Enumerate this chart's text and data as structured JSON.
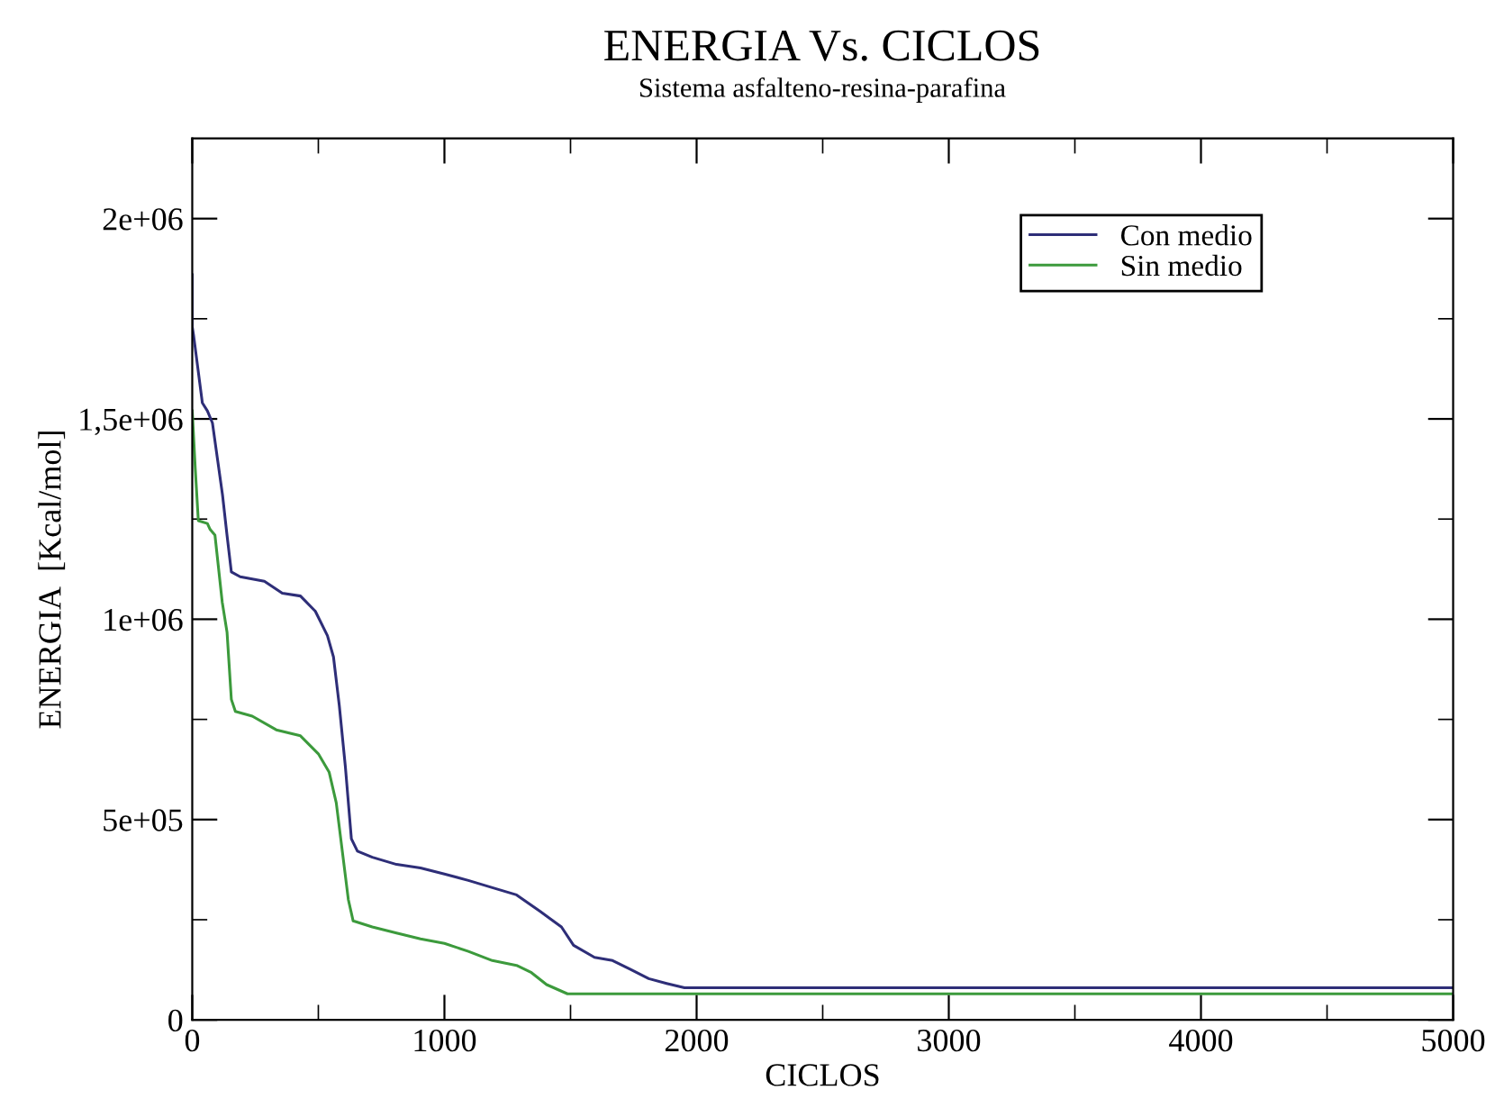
{
  "chart_data": {
    "type": "line",
    "title": "ENERGIA Vs. CICLOS",
    "subtitle": "Sistema asfalteno-resina-parafina",
    "xlabel": "CICLOS",
    "ylabel": "ENERGIA  [Kcal/mol]",
    "xlim": [
      0,
      5000
    ],
    "ylim": [
      0,
      2200000
    ],
    "xticks": [
      0,
      {
        "value": 500,
        "label": null
      },
      1000,
      {
        "value": 1500,
        "label": null
      },
      2000,
      {
        "value": 2500,
        "label": null
      },
      3000,
      {
        "value": 3500,
        "label": null
      },
      4000,
      {
        "value": 4500,
        "label": null
      },
      5000
    ],
    "yticks": [
      0,
      {
        "value": 250000,
        "label": null
      },
      {
        "value": 500000,
        "label": "5e+05"
      },
      {
        "value": 750000,
        "label": null
      },
      {
        "value": 1000000,
        "label": "1e+06"
      },
      {
        "value": 1250000,
        "label": null
      },
      {
        "value": 1500000,
        "label": "1,5e+06"
      },
      {
        "value": 1750000,
        "label": null
      },
      {
        "value": 2000000,
        "label": "2e+06"
      }
    ],
    "grid": false,
    "legend": "top right",
    "marker": "none",
    "line_style": "solid",
    "series": [
      {
        "name": "Con medio",
        "color": "#2e2e78",
        "x": [
          0,
          0,
          5,
          40,
          60,
          80,
          120,
          138,
          155,
          190,
          286,
          357,
          429,
          488,
          536,
          560,
          583,
          607,
          631,
          655,
          714,
          810,
          905,
          1000,
          1095,
          1190,
          1286,
          1381,
          1464,
          1512,
          1595,
          1667,
          1738,
          1810,
          1881,
          1952,
          5000
        ],
        "values": [
          1860000,
          1730000,
          1710000,
          1540000,
          1520000,
          1490000,
          1310000,
          1209000,
          1118000,
          1106000,
          1095000,
          1065000,
          1058000,
          1020000,
          959000,
          906000,
          785000,
          633000,
          452000,
          421000,
          406000,
          388000,
          379000,
          364000,
          348000,
          330000,
          312000,
          270000,
          232000,
          186000,
          156000,
          148000,
          126000,
          103000,
          91000,
          80000,
          80000
        ]
      },
      {
        "name": "Sin medio",
        "color": "#3c9a3c",
        "x": [
          0,
          12,
          24,
          60,
          71,
          90,
          119,
          138,
          155,
          171,
          238,
          333,
          429,
          500,
          543,
          571,
          595,
          619,
          638,
          714,
          810,
          905,
          1000,
          1095,
          1190,
          1286,
          1345,
          1405,
          1488,
          5000
        ],
        "values": [
          1520000,
          1375000,
          1246000,
          1239000,
          1224000,
          1210000,
          1042000,
          967000,
          800000,
          770000,
          758000,
          724000,
          709000,
          664000,
          618000,
          542000,
          421000,
          300000,
          247000,
          232000,
          217000,
          202000,
          191000,
          171000,
          148000,
          136000,
          118000,
          88000,
          65000,
          65000
        ]
      }
    ]
  }
}
